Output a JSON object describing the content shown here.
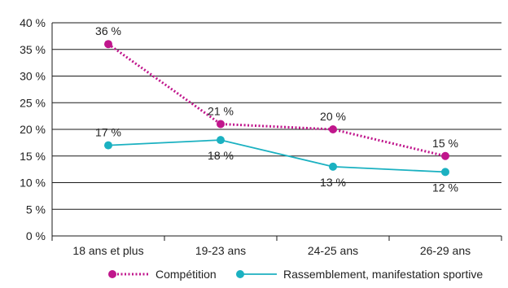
{
  "chart_data": {
    "type": "line",
    "categories": [
      "18 ans et plus",
      "19-23 ans",
      "24-25 ans",
      "26-29 ans"
    ],
    "yticks": [
      "0 %",
      "5 %",
      "10 %",
      "15 %",
      "20 %",
      "25 %",
      "30 %",
      "35 %",
      "40 %"
    ],
    "ylim": [
      0,
      40
    ],
    "grid": true,
    "legend_position": "bottom",
    "series": [
      {
        "name": "Compétition",
        "values": [
          36,
          21,
          20,
          15
        ],
        "labels": [
          "36 %",
          "21 %",
          "20 %",
          "15 %"
        ],
        "color": "#C0168C",
        "line_style": "dotted"
      },
      {
        "name": "Rassemblement, manifestation sportive",
        "values": [
          17,
          18,
          13,
          12
        ],
        "labels": [
          "17 %",
          "18 %",
          "13 %",
          "12 %"
        ],
        "color": "#1BB1C1",
        "line_style": "solid"
      }
    ]
  }
}
